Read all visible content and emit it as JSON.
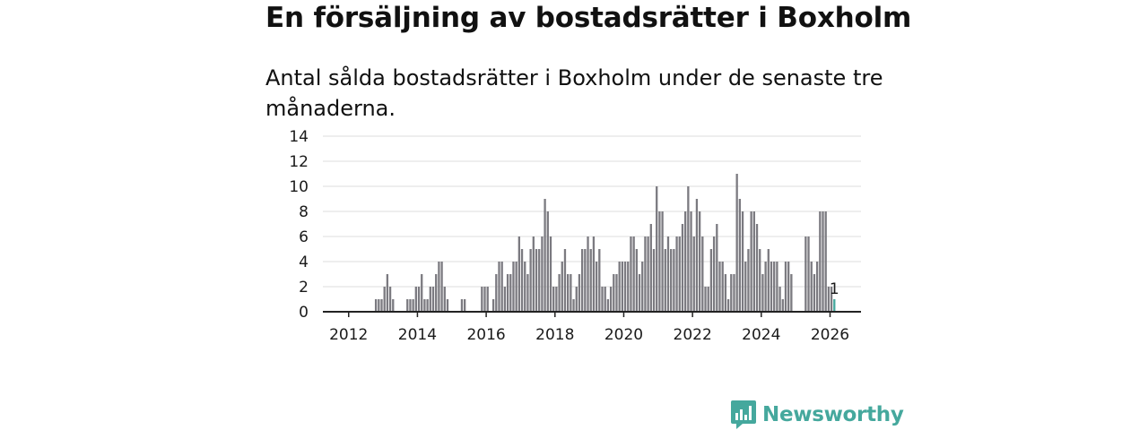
{
  "headline": "En försäljning av bostadsrätter i Boxholm",
  "subtitle": "Antal sålda bostadsrätter i Boxholm under de senaste tre månaderna.",
  "brand": {
    "name": "Newsworthy",
    "color": "#45a89d",
    "icon": "bar-chart-icon"
  },
  "colors": {
    "bar": "#7b7a80",
    "highlight": "#45a89d",
    "axis": "#222222",
    "grid": "#dddddd"
  },
  "chart_data": {
    "type": "bar",
    "title": "Antal sålda bostadsrätter i Boxholm",
    "xlabel": "",
    "ylabel": "",
    "ylim": [
      0,
      14
    ],
    "yticks": [
      0,
      2,
      4,
      6,
      8,
      10,
      12,
      14
    ],
    "xticks": [
      2012,
      2014,
      2016,
      2018,
      2020,
      2022,
      2024,
      2026
    ],
    "x_domain": [
      2011.25,
      2026.9
    ],
    "start": {
      "year": 2011,
      "month": 4
    },
    "values": [
      0,
      0,
      0,
      0,
      0,
      0,
      0,
      0,
      0,
      0,
      0,
      0,
      0,
      0,
      0,
      0,
      0,
      0,
      1,
      1,
      1,
      2,
      3,
      2,
      1,
      0,
      0,
      0,
      0,
      1,
      1,
      1,
      2,
      2,
      3,
      1,
      1,
      2,
      2,
      3,
      4,
      4,
      2,
      1,
      0,
      0,
      0,
      0,
      1,
      1,
      0,
      0,
      0,
      0,
      0,
      2,
      2,
      2,
      0,
      1,
      3,
      4,
      4,
      2,
      3,
      3,
      4,
      4,
      6,
      5,
      4,
      3,
      5,
      6,
      5,
      5,
      6,
      9,
      8,
      6,
      2,
      2,
      3,
      4,
      5,
      3,
      3,
      1,
      2,
      3,
      5,
      5,
      6,
      5,
      6,
      4,
      5,
      2,
      2,
      1,
      2,
      3,
      3,
      4,
      4,
      4,
      4,
      6,
      6,
      5,
      3,
      4,
      6,
      6,
      7,
      5,
      10,
      8,
      8,
      5,
      6,
      5,
      5,
      6,
      6,
      7,
      8,
      10,
      8,
      6,
      9,
      8,
      6,
      2,
      2,
      5,
      6,
      7,
      4,
      4,
      3,
      1,
      3,
      3,
      11,
      9,
      8,
      4,
      5,
      8,
      8,
      7,
      5,
      3,
      4,
      5,
      4,
      4,
      4,
      2,
      1,
      4,
      4,
      3,
      0,
      0,
      0,
      0,
      6,
      6,
      4,
      3,
      4,
      8,
      8,
      8,
      2,
      2,
      1
    ],
    "highlight_last": true,
    "annotation": "1"
  }
}
